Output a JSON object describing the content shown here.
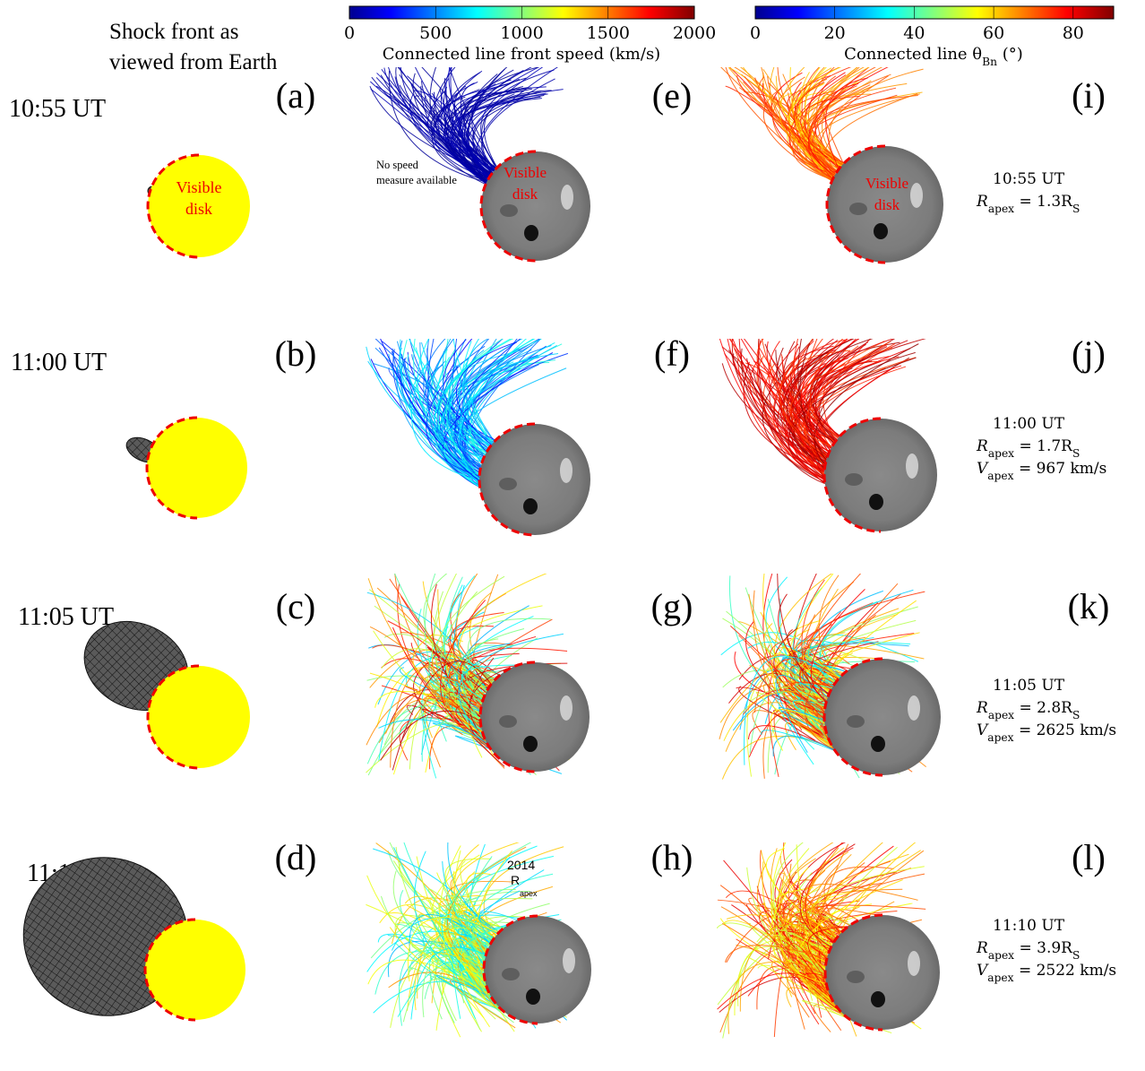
{
  "header": {
    "column_title": [
      "Shock front as",
      "viewed from Earth"
    ],
    "colorbars": [
      {
        "ticks": [
          "0",
          "500",
          "1000",
          "1500",
          "2000"
        ],
        "label": [
          {
            "text": "Connected line front speed (km/s)"
          }
        ]
      },
      {
        "ticks": [
          "0",
          "20",
          "40",
          "60",
          "80"
        ],
        "label": [
          {
            "text": "Connected line θ"
          },
          {
            "sub": "Bn"
          },
          {
            "text": " (°)"
          }
        ]
      }
    ]
  },
  "annotations": {
    "visible_disk": [
      "Visible",
      "disk"
    ],
    "no_speed": [
      "No speed",
      "measure available"
    ],
    "overlay": [
      "2014",
      "R",
      "apex"
    ]
  },
  "rows": [
    {
      "time": "10:55 UT",
      "panels": [
        "(a)",
        "(e)",
        "(i)"
      ],
      "info": [
        [
          {
            "text": "R"
          },
          {
            "sub": "apex"
          },
          {
            "text": " = 1.3R"
          },
          {
            "sub": "S"
          }
        ]
      ]
    },
    {
      "time": "11:00 UT",
      "panels": [
        "(b)",
        "(f)",
        "(j)"
      ],
      "info": [
        [
          {
            "text": "R"
          },
          {
            "sub": "apex"
          },
          {
            "text": " = 1.7R"
          },
          {
            "sub": "S"
          }
        ],
        [
          {
            "text": "V"
          },
          {
            "sub": "apex"
          },
          {
            "text": " = 967 km/s"
          }
        ]
      ]
    },
    {
      "time": "11:05 UT",
      "panels": [
        "(c)",
        "(g)",
        "(k)"
      ],
      "info": [
        [
          {
            "text": "R"
          },
          {
            "sub": "apex"
          },
          {
            "text": " = 2.8R"
          },
          {
            "sub": "S"
          }
        ],
        [
          {
            "text": "V"
          },
          {
            "sub": "apex"
          },
          {
            "text": " = 2625 km/s"
          }
        ]
      ]
    },
    {
      "time": "11:10 UT",
      "panels": [
        "(d)",
        "(h)",
        "(l)"
      ],
      "info": [
        [
          {
            "text": "R"
          },
          {
            "sub": "apex"
          },
          {
            "text": " = 3.9R"
          },
          {
            "sub": "S"
          }
        ],
        [
          {
            "text": "V"
          },
          {
            "sub": "apex"
          },
          {
            "text": " = 2522 km/s"
          }
        ]
      ]
    }
  ]
}
